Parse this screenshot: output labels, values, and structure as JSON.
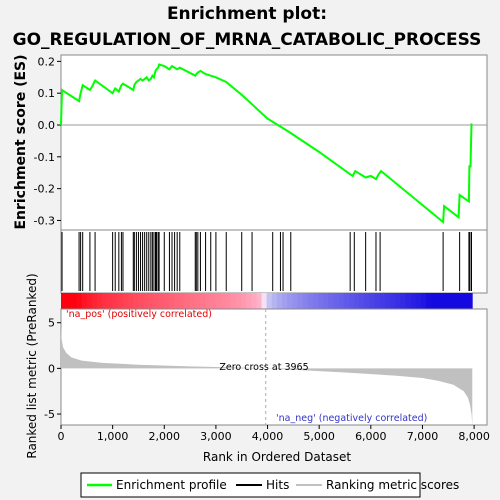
{
  "title_line1": "Enrichment plot:",
  "title_line2": "GO_REGULATION_OF_MRNA_CATABOLIC_PROCESS",
  "chart_data": {
    "type": "line",
    "es_panel": {
      "ylabel": "Enrichment score (ES)",
      "ylim": [
        -0.33,
        0.22
      ],
      "yticks": [
        -0.3,
        -0.2,
        -0.1,
        0.0,
        0.1,
        0.2
      ],
      "ytick_labels": [
        "-0.3",
        "-0.2",
        "-0.1",
        "0.0",
        "0.1",
        "0.2"
      ],
      "series": [
        {
          "name": "Enrichment profile",
          "color": "#00ff00",
          "x": [
            0,
            20,
            350,
            380,
            420,
            560,
            600,
            660,
            1000,
            1050,
            1120,
            1170,
            1200,
            1400,
            1420,
            1460,
            1500,
            1540,
            1580,
            1620,
            1660,
            1700,
            1740,
            1770,
            1800,
            1830,
            1850,
            1880,
            1900,
            2000,
            2100,
            2150,
            2200,
            2250,
            2300,
            2600,
            2620,
            2650,
            2700,
            2800,
            2900,
            3000,
            3200,
            3500,
            3800,
            4000,
            4200,
            4400,
            5000,
            5600,
            5650,
            5700,
            5800,
            5900,
            6000,
            6100,
            6150,
            6200,
            7400,
            7420,
            7700,
            7720,
            7900,
            7910,
            7930,
            7950
          ],
          "y": [
            0.0,
            0.11,
            0.075,
            0.1,
            0.125,
            0.11,
            0.12,
            0.14,
            0.1,
            0.115,
            0.105,
            0.125,
            0.13,
            0.11,
            0.125,
            0.135,
            0.14,
            0.145,
            0.14,
            0.145,
            0.15,
            0.14,
            0.145,
            0.155,
            0.15,
            0.17,
            0.175,
            0.18,
            0.19,
            0.185,
            0.175,
            0.185,
            0.18,
            0.175,
            0.18,
            0.155,
            0.16,
            0.165,
            0.17,
            0.16,
            0.155,
            0.15,
            0.135,
            0.095,
            0.05,
            0.02,
            0.0,
            -0.02,
            -0.085,
            -0.155,
            -0.16,
            -0.145,
            -0.155,
            -0.165,
            -0.16,
            -0.17,
            -0.155,
            -0.145,
            -0.305,
            -0.255,
            -0.29,
            -0.22,
            -0.24,
            -0.13,
            -0.13,
            0.005
          ]
        }
      ]
    },
    "hits_panel": {
      "hit_positions": [
        20,
        350,
        380,
        420,
        560,
        660,
        1000,
        1050,
        1120,
        1170,
        1200,
        1400,
        1420,
        1460,
        1500,
        1540,
        1580,
        1620,
        1660,
        1700,
        1740,
        1770,
        1800,
        1830,
        1850,
        1880,
        1900,
        2000,
        2100,
        2150,
        2200,
        2250,
        2300,
        2600,
        2620,
        2650,
        2700,
        2800,
        2900,
        3000,
        3200,
        3500,
        3700,
        4100,
        4250,
        4300,
        4450,
        5600,
        5680,
        5900,
        6100,
        6180,
        7400,
        7720,
        7900,
        7920,
        7950
      ]
    },
    "metric_panel": {
      "ylabel": "Ranked list metric (PreRanked)",
      "ylim": [
        -6.2,
        6.5
      ],
      "yticks": [
        -5,
        0,
        5
      ],
      "ytick_labels": [
        "-5",
        "0",
        "5"
      ],
      "zero_cross_label": "Zero cross at 3965",
      "zero_cross": 3965,
      "pos_label": "'na_pos' (positively correlated)",
      "neg_label": "'na_neg' (negatively correlated)",
      "curve_x": [
        0,
        10,
        40,
        100,
        200,
        400,
        800,
        1500,
        2500,
        3500,
        3965,
        4500,
        5500,
        6500,
        7000,
        7300,
        7600,
        7800,
        7880,
        7920,
        7950,
        7965
      ],
      "curve_y": [
        5.0,
        3.3,
        2.3,
        1.7,
        1.2,
        0.85,
        0.6,
        0.4,
        0.22,
        0.08,
        0.0,
        -0.15,
        -0.45,
        -0.8,
        -1.05,
        -1.35,
        -1.8,
        -2.5,
        -3.2,
        -4.0,
        -5.0,
        -6.2
      ]
    },
    "x_axis": {
      "xlabel": "Rank in Ordered Dataset",
      "xlim": [
        0,
        8250
      ],
      "xticks": [
        0,
        1000,
        2000,
        3000,
        4000,
        5000,
        6000,
        7000,
        8000
      ],
      "xtick_labels": [
        "0",
        "1,000",
        "2,000",
        "3,000",
        "4,000",
        "5,000",
        "6,000",
        "7,000",
        "8,000"
      ],
      "n_genes": 7965
    },
    "legend": {
      "placement": "bottom",
      "entries": [
        {
          "label": "Enrichment profile",
          "color": "#00ff00"
        },
        {
          "label": "Hits",
          "color": "#000000"
        },
        {
          "label": "Ranking metric scores",
          "color": "#c0c0c0"
        }
      ]
    }
  }
}
